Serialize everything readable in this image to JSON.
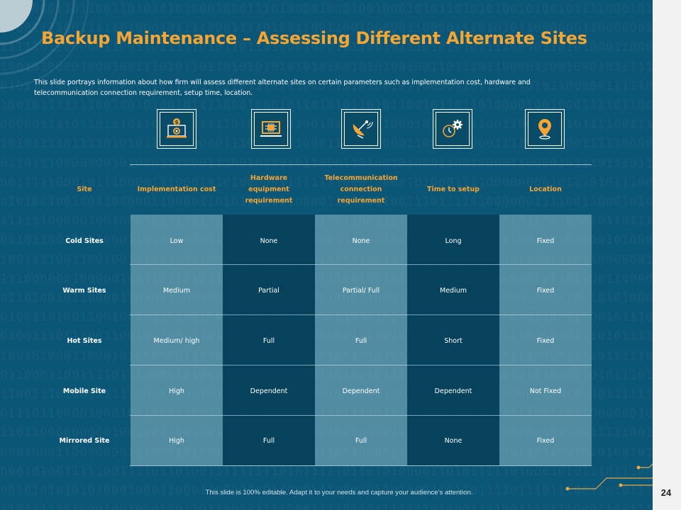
{
  "slide": {
    "title": "Backup Maintenance – Assessing Different Alternate Sites",
    "description": "This slide portrays information about how firm will assess different alternate sites on certain parameters such as implementation cost, hardware and telecommunication connection requirement, setup time, location.",
    "footer": "This slide is 100% editable.  Adapt it to your needs and capture your audience’s attention.",
    "page_number": "24"
  },
  "colors": {
    "background": "#0b5676",
    "accent_orange": "#f5a534",
    "light_column": "#5e96ad",
    "dark_column": "#0a4c68",
    "text_white": "#ffffff"
  },
  "icons": [
    "money-settings-laptop-icon",
    "cpu-monitor-icon",
    "satellite-dish-icon",
    "clock-gear-icon",
    "location-pin-icon"
  ],
  "table": {
    "headers": [
      "Site",
      "Implementation  cost",
      "Hardware\nequipment\nrequirement",
      "Telecommunication\nconnection\nrequirement",
      "Time to setup",
      "Location"
    ],
    "rows": [
      {
        "site": "Cold Sites",
        "cells": [
          "Low",
          "None",
          "None",
          "Long",
          "Fixed"
        ]
      },
      {
        "site": "Warm Sites",
        "cells": [
          "Medium",
          "Partial",
          "Partial/ Full",
          "Medium",
          "Fixed"
        ]
      },
      {
        "site": "Hot Sites",
        "cells": [
          "Medium/ high",
          "Full",
          "Full",
          "Short",
          "Fixed"
        ]
      },
      {
        "site": "Mobile Site",
        "cells": [
          "High",
          "Dependent",
          "Dependent",
          "Dependent",
          "Not Fixed"
        ]
      },
      {
        "site": "Mirrored Site",
        "cells": [
          "High",
          "Full",
          "Full",
          "None",
          "Fixed"
        ]
      }
    ]
  }
}
